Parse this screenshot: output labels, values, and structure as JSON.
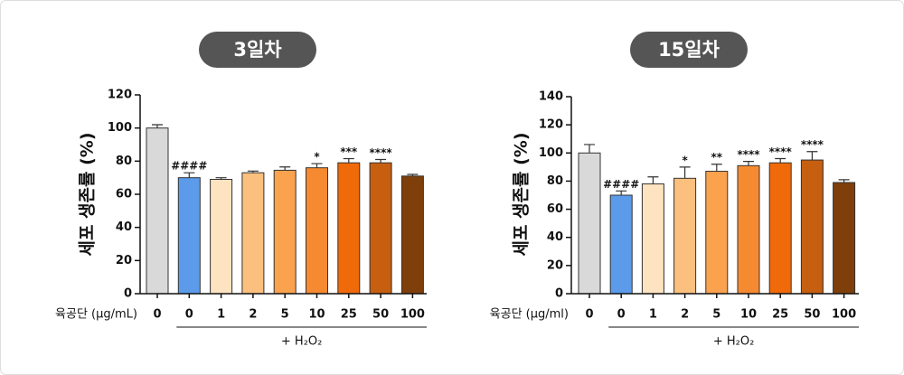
{
  "chart_data": [
    {
      "type": "bar",
      "title": "3일차",
      "y_label": "세포 생존률 (%)",
      "x_label": "육공단 (μg/mL)",
      "group_label": "+ H₂O₂",
      "categories": [
        "0",
        "0",
        "1",
        "2",
        "5",
        "10",
        "25",
        "50",
        "100"
      ],
      "values": [
        100,
        70,
        69,
        73,
        74.5,
        76,
        79,
        79,
        71
      ],
      "errors": [
        2,
        3,
        1,
        1,
        2,
        2.5,
        2.5,
        2,
        1
      ],
      "annotations": [
        null,
        "####",
        null,
        null,
        null,
        "*",
        "***",
        "****",
        null
      ],
      "colors": [
        "#d9d9d9",
        "#5b9bea",
        "#fde3c0",
        "#fcc07e",
        "#fba24e",
        "#f68a30",
        "#f06a0a",
        "#c65f10",
        "#7f3f0a"
      ],
      "ylim": [
        0,
        120
      ],
      "yticks": [
        0,
        20,
        40,
        60,
        80,
        100,
        120
      ]
    },
    {
      "type": "bar",
      "title": "15일차",
      "y_label": "세포 생존률 (%)",
      "x_label": "육공단 (μg/ml)",
      "group_label": "+ H₂O₂",
      "categories": [
        "0",
        "0",
        "1",
        "2",
        "5",
        "10",
        "25",
        "50",
        "100"
      ],
      "values": [
        100,
        70,
        78,
        82,
        87,
        91,
        93,
        95,
        79
      ],
      "errors": [
        6,
        3,
        5,
        8,
        5,
        3,
        3,
        6,
        2
      ],
      "annotations": [
        null,
        "####",
        null,
        "*",
        "**",
        "****",
        "****",
        "****",
        null
      ],
      "colors": [
        "#d9d9d9",
        "#5b9bea",
        "#fde3c0",
        "#fcc07e",
        "#fba24e",
        "#f68a30",
        "#f06a0a",
        "#c65f10",
        "#7f3f0a"
      ],
      "ylim": [
        0,
        140
      ],
      "yticks": [
        0,
        20,
        40,
        60,
        80,
        100,
        120,
        140
      ]
    }
  ]
}
